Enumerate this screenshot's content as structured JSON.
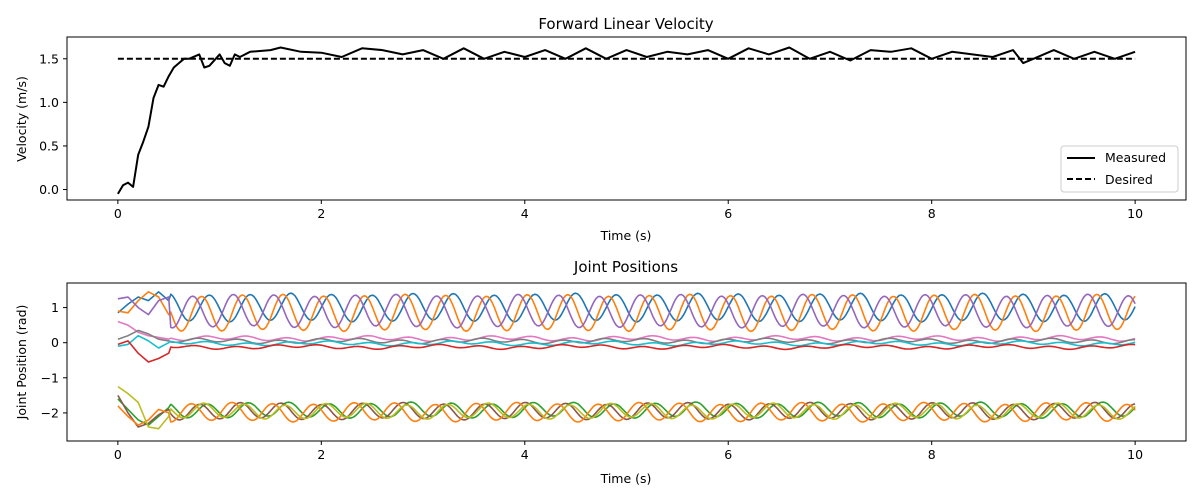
{
  "chart_data": [
    {
      "type": "line",
      "title": "Forward Linear Velocity",
      "xlabel": "Time (s)",
      "ylabel": "Velocity (m/s)",
      "xlim": [
        -0.5,
        10.5
      ],
      "ylim": [
        -0.12,
        1.75
      ],
      "xticks": [
        0,
        2,
        4,
        6,
        8,
        10
      ],
      "yticks": [
        0.0,
        0.5,
        1.0,
        1.5
      ],
      "ytick_labels": [
        "0.0",
        "0.5",
        "1.0",
        "1.5"
      ],
      "legend": {
        "location": "lower right"
      },
      "series": [
        {
          "name": "Measured",
          "color": "#000000",
          "dash": "solid",
          "x": [
            0,
            0.05,
            0.1,
            0.15,
            0.2,
            0.25,
            0.3,
            0.35,
            0.4,
            0.45,
            0.5,
            0.55,
            0.6,
            0.65,
            0.7,
            0.8,
            0.85,
            0.9,
            1.0,
            1.05,
            1.1,
            1.15,
            1.2,
            1.3,
            1.5,
            1.6,
            1.8,
            2.0,
            2.2,
            2.4,
            2.6,
            2.8,
            3.0,
            3.2,
            3.4,
            3.6,
            3.8,
            4.0,
            4.2,
            4.4,
            4.6,
            4.8,
            5.0,
            5.2,
            5.4,
            5.6,
            5.8,
            6.0,
            6.2,
            6.4,
            6.6,
            6.8,
            7.0,
            7.2,
            7.4,
            7.6,
            7.8,
            8.0,
            8.2,
            8.4,
            8.6,
            8.8,
            8.9,
            9.0,
            9.2,
            9.4,
            9.6,
            9.8,
            10.0
          ],
          "y": [
            -0.05,
            0.05,
            0.08,
            0.03,
            0.4,
            0.55,
            0.72,
            1.05,
            1.2,
            1.18,
            1.3,
            1.4,
            1.45,
            1.5,
            1.5,
            1.55,
            1.4,
            1.42,
            1.55,
            1.45,
            1.42,
            1.55,
            1.52,
            1.58,
            1.6,
            1.63,
            1.58,
            1.57,
            1.52,
            1.62,
            1.6,
            1.55,
            1.6,
            1.5,
            1.62,
            1.5,
            1.58,
            1.52,
            1.6,
            1.5,
            1.62,
            1.5,
            1.6,
            1.52,
            1.58,
            1.55,
            1.6,
            1.5,
            1.62,
            1.55,
            1.63,
            1.5,
            1.58,
            1.48,
            1.6,
            1.58,
            1.62,
            1.5,
            1.58,
            1.55,
            1.52,
            1.6,
            1.45,
            1.5,
            1.6,
            1.5,
            1.58,
            1.5,
            1.58
          ]
        },
        {
          "name": "Desired",
          "color": "#000000",
          "dash": "dashed",
          "x": [
            0,
            10
          ],
          "y": [
            1.5,
            1.5
          ]
        }
      ]
    },
    {
      "type": "line",
      "title": "Joint Positions",
      "xlabel": "Time (s)",
      "ylabel": "Joint Position (rad)",
      "xlim": [
        -0.5,
        10.5
      ],
      "ylim": [
        -2.8,
        1.7
      ],
      "xticks": [
        0,
        2,
        4,
        6,
        8,
        10
      ],
      "yticks": [
        -2,
        -1,
        0,
        1
      ],
      "series": [
        {
          "color": "#1f77b4",
          "kind": "osc",
          "base": 1.0,
          "amp": 0.38,
          "period": 0.4,
          "phase": 0.0,
          "x": [
            0,
            0.1,
            0.2,
            0.3,
            0.4,
            0.5
          ],
          "y": [
            0.85,
            1.1,
            1.3,
            1.2,
            1.45,
            1.2
          ]
        },
        {
          "color": "#ff7f0e",
          "kind": "osc",
          "base": 0.85,
          "amp": 0.5,
          "period": 0.4,
          "phase": 1.2,
          "x": [
            0,
            0.1,
            0.2,
            0.3,
            0.4,
            0.5
          ],
          "y": [
            0.9,
            0.85,
            1.2,
            1.45,
            1.3,
            0.8
          ]
        },
        {
          "color": "#9467bd",
          "kind": "osc",
          "base": 0.9,
          "amp": 0.45,
          "period": 0.4,
          "phase": 2.6,
          "x": [
            0,
            0.1,
            0.2,
            0.3,
            0.4,
            0.5
          ],
          "y": [
            1.25,
            1.3,
            1.0,
            0.8,
            1.2,
            1.3
          ]
        },
        {
          "color": "#e377c2",
          "kind": "osc",
          "base": 0.12,
          "amp": 0.05,
          "period": 0.4,
          "phase": 0.6,
          "x": [
            0,
            0.1,
            0.2,
            0.3,
            0.4,
            0.5
          ],
          "y": [
            0.6,
            0.5,
            0.3,
            0.2,
            0.15,
            0.1
          ]
        },
        {
          "color": "#7f7f7f",
          "kind": "osc",
          "base": 0.05,
          "amp": 0.05,
          "period": 0.4,
          "phase": 1.9,
          "x": [
            0,
            0.1,
            0.2,
            0.3,
            0.4,
            0.5
          ],
          "y": [
            0.1,
            0.2,
            0.35,
            0.25,
            0.1,
            0.05
          ]
        },
        {
          "color": "#17becf",
          "kind": "osc",
          "base": -0.02,
          "amp": 0.04,
          "period": 0.4,
          "phase": 0.4,
          "x": [
            0,
            0.1,
            0.2,
            0.3,
            0.4,
            0.5
          ],
          "y": [
            -0.1,
            -0.05,
            0.2,
            0.05,
            -0.15,
            0.0
          ]
        },
        {
          "color": "#d62728",
          "kind": "osc",
          "base": -0.12,
          "amp": 0.04,
          "period": 0.4,
          "phase": 2.2,
          "x": [
            0,
            0.1,
            0.2,
            0.3,
            0.4,
            0.5
          ],
          "y": [
            -0.05,
            0.05,
            -0.3,
            -0.55,
            -0.45,
            -0.3
          ]
        },
        {
          "color": "#2ca02c",
          "kind": "osc",
          "base": -1.92,
          "amp": 0.2,
          "period": 0.4,
          "phase": 0.3,
          "x": [
            0,
            0.1,
            0.2,
            0.3,
            0.4,
            0.5
          ],
          "y": [
            -1.6,
            -1.9,
            -2.2,
            -2.35,
            -2.1,
            -1.85
          ]
        },
        {
          "color": "#8c564b",
          "kind": "osc",
          "base": -1.95,
          "amp": 0.22,
          "period": 0.4,
          "phase": 1.5,
          "x": [
            0,
            0.1,
            0.2,
            0.3,
            0.4,
            0.5
          ],
          "y": [
            -1.5,
            -2.0,
            -2.4,
            -2.3,
            -2.05,
            -1.9
          ]
        },
        {
          "color": "#ff7f0e",
          "kind": "osc",
          "base": -1.98,
          "amp": 0.25,
          "period": 0.4,
          "phase": 2.8,
          "x": [
            0,
            0.1,
            0.2,
            0.3,
            0.4,
            0.5
          ],
          "y": [
            -1.8,
            -2.1,
            -2.35,
            -2.2,
            -1.9,
            -2.0
          ]
        },
        {
          "color": "#bcbd22",
          "kind": "osc",
          "base": -1.95,
          "amp": 0.2,
          "period": 0.4,
          "phase": 0.9,
          "x": [
            0,
            0.1,
            0.2,
            0.3,
            0.4,
            0.5
          ],
          "y": [
            -1.25,
            -1.45,
            -1.7,
            -2.4,
            -2.45,
            -2.1
          ]
        }
      ]
    }
  ]
}
